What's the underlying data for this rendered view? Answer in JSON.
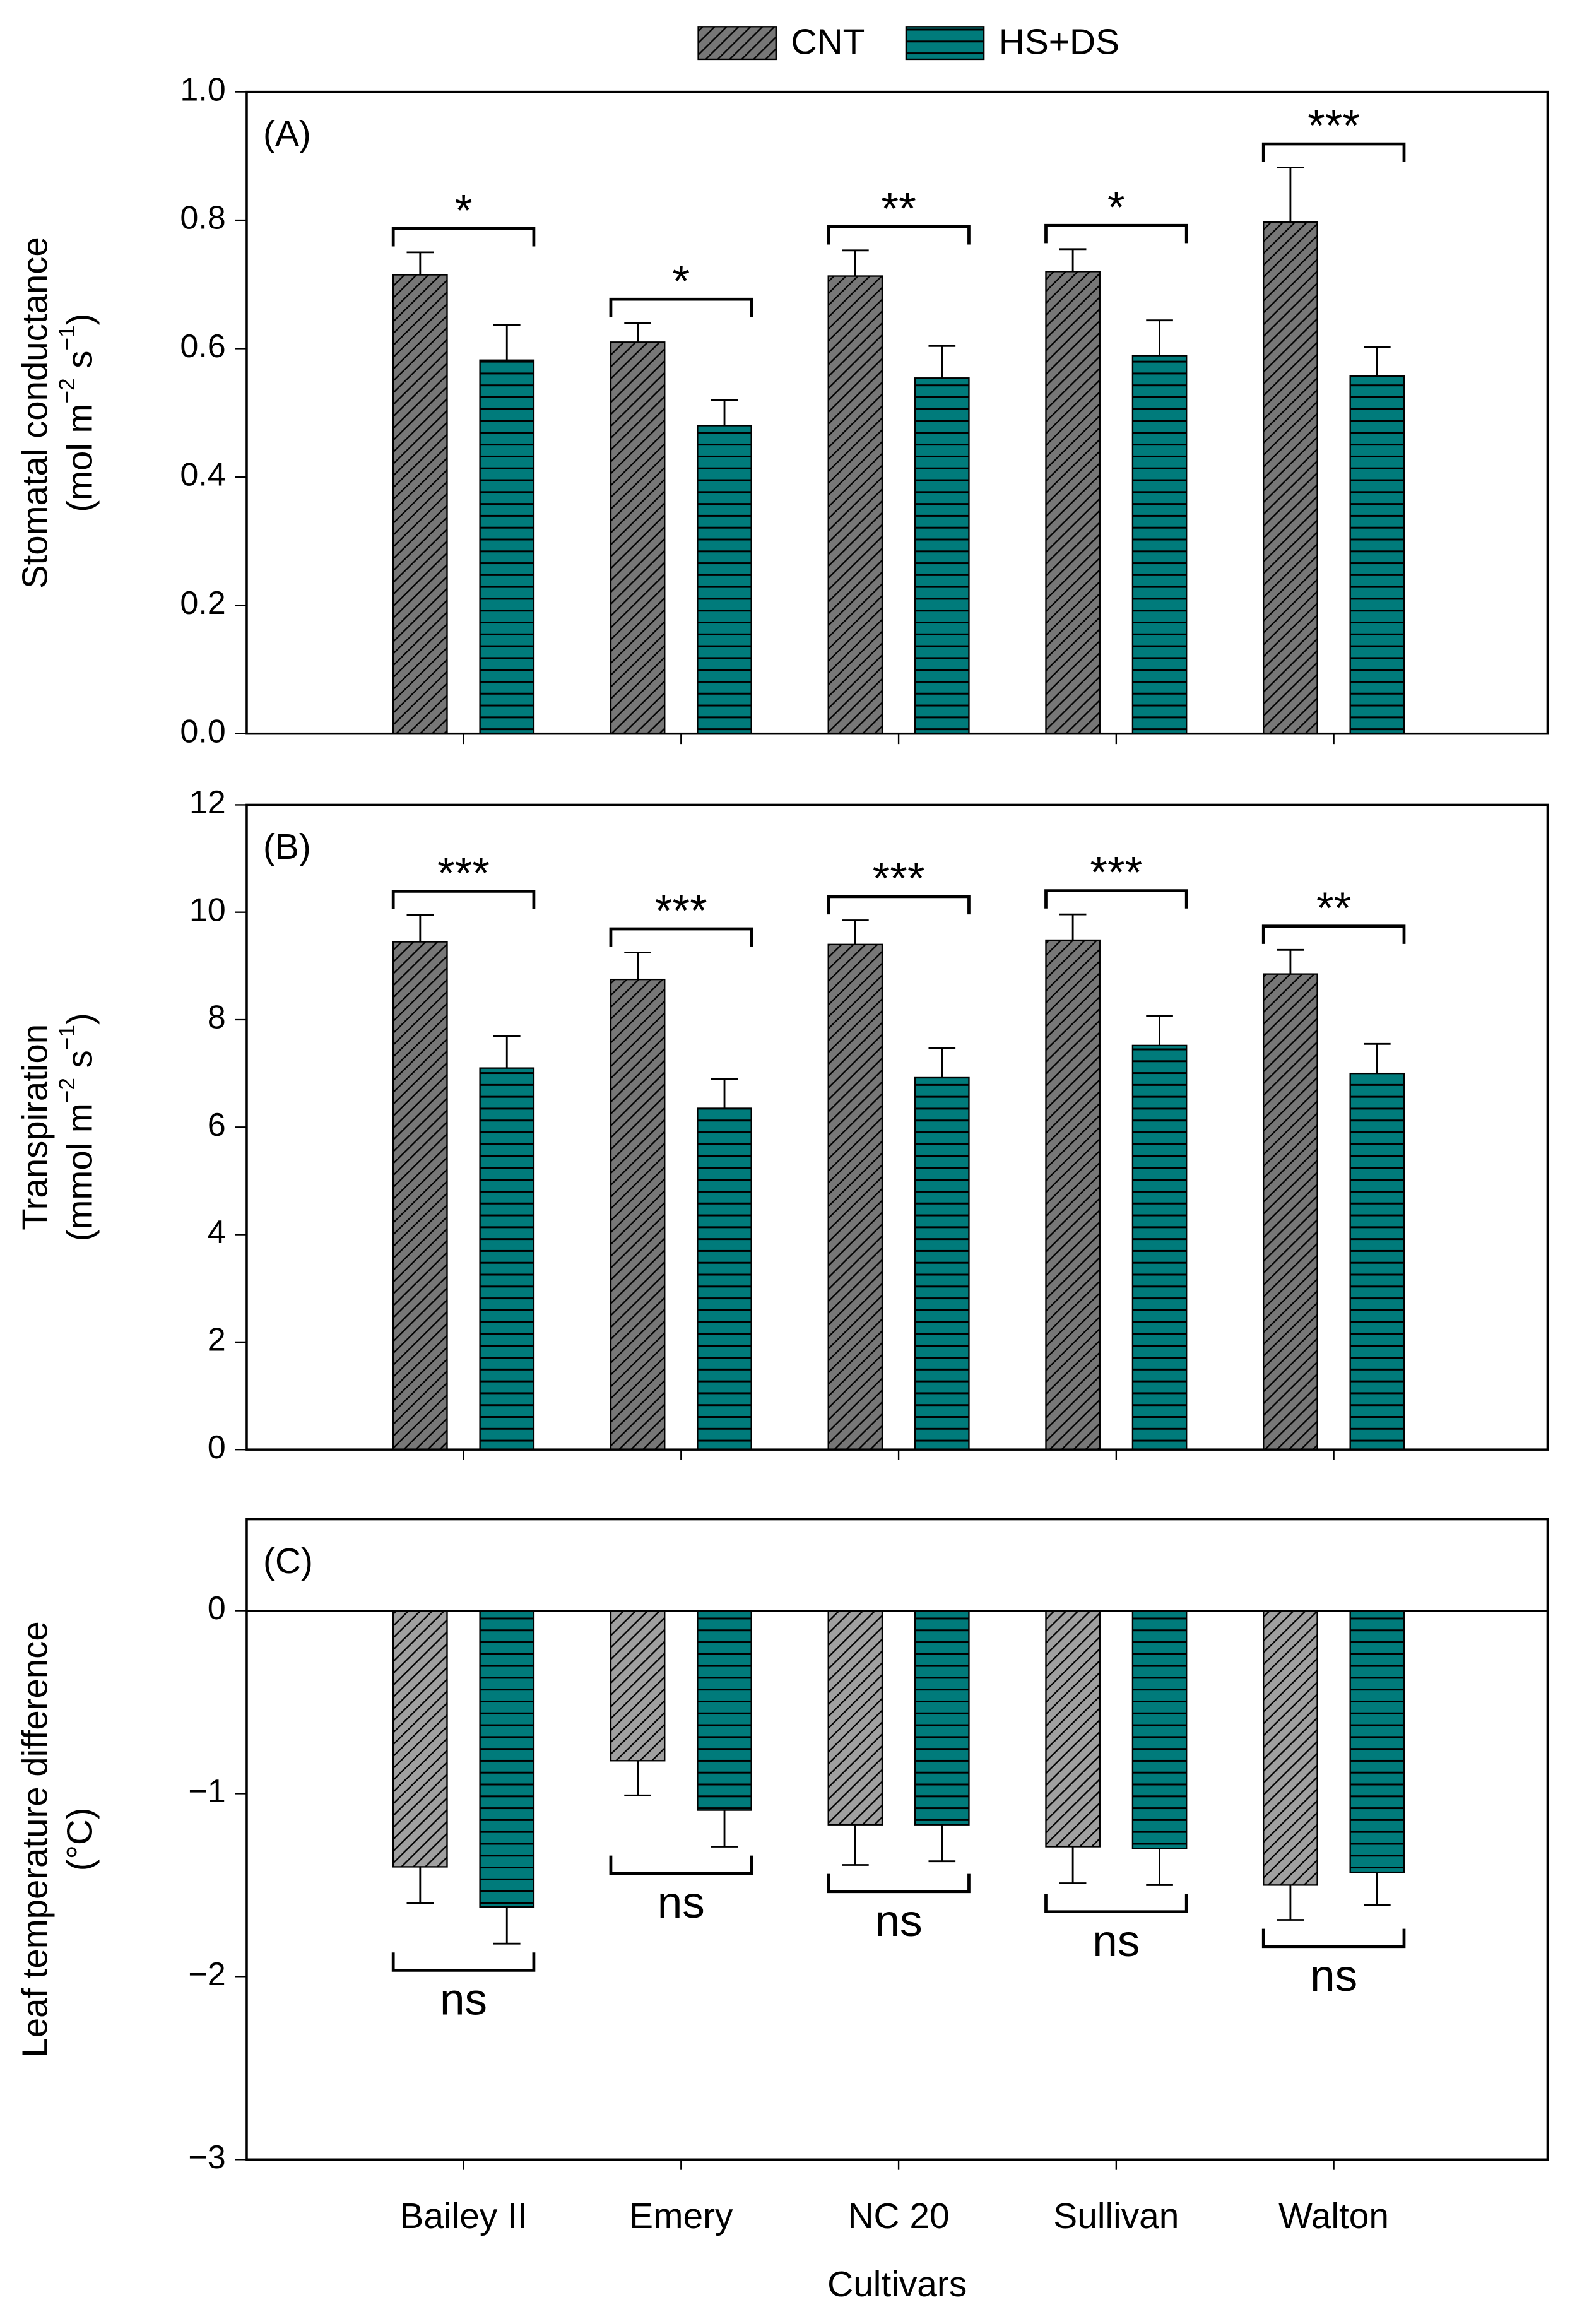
{
  "chart_data": [
    {
      "type": "bar",
      "panel": "(A)",
      "ylabel": [
        "Stomatal conductance",
        [
          "(mol m",
          "−2",
          " s",
          "−1",
          ")"
        ]
      ],
      "ylim": [
        0,
        1
      ],
      "yticks": [
        {
          "value": 0,
          "label": "0.0"
        },
        {
          "value": 0.2,
          "label": "0.2"
        },
        {
          "value": 0.4,
          "label": "0.4"
        },
        {
          "value": 0.6,
          "label": "0.6"
        },
        {
          "value": 0.8,
          "label": "0.8"
        },
        {
          "value": 1,
          "label": "1.0"
        }
      ],
      "series": [
        {
          "name": "CNT",
          "color": "#777777",
          "values": [
            0.715,
            0.61,
            0.713,
            0.72,
            0.797
          ],
          "errors": [
            0.035,
            0.03,
            0.04,
            0.035,
            0.085
          ]
        },
        {
          "name": "HS+DS",
          "color": "#007b7b",
          "values": [
            0.582,
            0.48,
            0.554,
            0.589,
            0.557
          ],
          "errors": [
            0.055,
            0.04,
            0.05,
            0.055,
            0.045
          ]
        }
      ],
      "significance": [
        "*",
        "*",
        "**",
        "*",
        "***"
      ]
    },
    {
      "type": "bar",
      "panel": "(B)",
      "ylabel": [
        "Transpiration",
        [
          "(mmol m",
          "−2",
          " s",
          "−1",
          ")"
        ]
      ],
      "ylim": [
        0,
        12
      ],
      "yticks": [
        0,
        2,
        4,
        6,
        8,
        10,
        12
      ],
      "series": [
        {
          "color": "#777777",
          "values": [
            9.45,
            8.75,
            9.4,
            9.48,
            8.85
          ],
          "errors": [
            0.5,
            0.5,
            0.45,
            0.48,
            0.45
          ]
        },
        {
          "color": "#007b7b",
          "values": [
            7.1,
            6.35,
            6.92,
            7.52,
            7.0
          ],
          "errors": [
            0.6,
            0.55,
            0.55,
            0.55,
            0.55
          ]
        }
      ],
      "significance": [
        "***",
        "***",
        "***",
        "***",
        "**"
      ]
    },
    {
      "type": "bar",
      "panel": "(C)",
      "ylabel": [
        "Leaf temperature difference",
        [
          "(°C)"
        ]
      ],
      "ylim": [
        -3,
        0.5
      ],
      "yticks": [
        {
          "value": -3,
          "label": "−3"
        },
        {
          "value": -2,
          "label": "−2"
        },
        {
          "value": -1,
          "label": "−1"
        },
        0
      ],
      "xlabel": "Cultivars",
      "categories": [
        "Bailey II",
        "Emery",
        "NC 20",
        "Sullivan",
        "Walton"
      ],
      "series": [
        {
          "color": "#a0a0a0",
          "values": [
            -1.4,
            -0.82,
            -1.17,
            -1.29,
            -1.5
          ],
          "errors": [
            0.2,
            0.19,
            0.22,
            0.2,
            0.19
          ]
        },
        {
          "color": "#007b7b",
          "values": [
            -1.62,
            -1.09,
            -1.17,
            -1.3,
            -1.43
          ],
          "errors": [
            0.2,
            0.2,
            0.2,
            0.2,
            0.18
          ]
        }
      ],
      "significance": [
        "ns",
        "ns",
        "ns",
        "ns",
        "ns"
      ]
    }
  ]
}
